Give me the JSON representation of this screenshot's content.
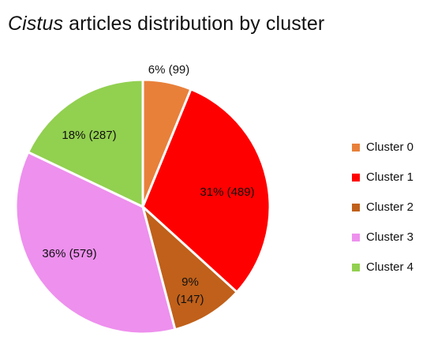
{
  "chart_data": {
    "type": "pie",
    "title_italic": "Cistus",
    "title_rest": " articles distribution by cluster",
    "categories": [
      "Cluster 0",
      "Cluster 1",
      "Cluster 2",
      "Cluster 3",
      "Cluster 4"
    ],
    "values": [
      99,
      489,
      147,
      579,
      287
    ],
    "data_labels": [
      "6% (99)",
      "31% (489)",
      "9% (147)",
      "36% (579)",
      "18% (287)"
    ],
    "colors": [
      "#E8803A",
      "#FF0000",
      "#C0601A",
      "#EE90EE",
      "#92D050"
    ],
    "start_angle": "12 o'clock",
    "direction": "clockwise",
    "legend_position": "right"
  }
}
